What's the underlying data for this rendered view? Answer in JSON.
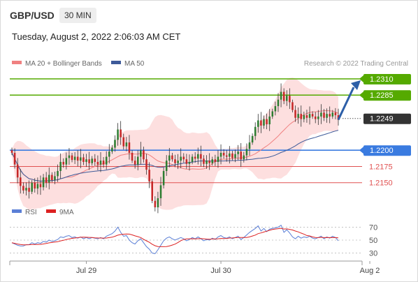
{
  "header": {
    "pair": "GBP/USD",
    "timeframe": "30 MIN",
    "date": "Tuesday, August 2, 2022 2:06:03 AM CET",
    "copyright": "Research © 2022 Trading Central"
  },
  "legend": {
    "main": [
      {
        "label": "MA 20 + Bollinger Bands",
        "color": "#f08080"
      },
      {
        "label": "MA 50",
        "color": "#3d5a99"
      }
    ],
    "rsi": [
      {
        "label": "RSI",
        "color": "#5b7fd6"
      },
      {
        "label": "9MA",
        "color": "#dd2222"
      }
    ]
  },
  "colors": {
    "up": "#2e7d32",
    "down": "#c62828",
    "resistance": "#55aa00",
    "support": "#3a7be0",
    "pivot": "#e05050",
    "current": "#333333",
    "band": "#fdd9d9"
  },
  "chart_data": {
    "type": "candlestick",
    "y_range": [
      1.2126,
      1.2324
    ],
    "current_price": 1.2249,
    "levels": [
      {
        "label": "1.2310",
        "value": 1.231,
        "kind": "resistance"
      },
      {
        "label": "1.2285",
        "value": 1.2285,
        "kind": "resistance"
      },
      {
        "label": "1.2249",
        "value": 1.2249,
        "kind": "current"
      },
      {
        "label": "1.2200",
        "value": 1.22,
        "kind": "support"
      },
      {
        "label": "1.2175",
        "value": 1.2175,
        "kind": "pivot"
      },
      {
        "label": "1.2150",
        "value": 1.215,
        "kind": "pivot"
      }
    ],
    "close": [
      1.2196,
      1.2178,
      1.2158,
      1.2145,
      1.2138,
      1.2142,
      1.2136,
      1.215,
      1.2141,
      1.2148,
      1.2143,
      1.2158,
      1.215,
      1.2162,
      1.2154,
      1.216,
      1.2168,
      1.2182,
      1.2178,
      1.2188,
      1.2192,
      1.2185,
      1.219,
      1.2184,
      1.2189,
      1.2182,
      1.2186,
      1.218,
      1.2187,
      1.2182,
      1.2178,
      1.2184,
      1.2178,
      1.219,
      1.2198,
      1.2204,
      1.2216,
      1.2232,
      1.222,
      1.2206,
      1.2212,
      1.2196,
      1.2184,
      1.2178,
      1.219,
      1.22,
      1.2186,
      1.217,
      1.2152,
      1.2122,
      1.2112,
      1.2126,
      1.2146,
      1.2168,
      1.2184,
      1.2192,
      1.2186,
      1.218,
      1.2184,
      1.219,
      1.2186,
      1.2179,
      1.2182,
      1.219,
      1.2187,
      1.2194,
      1.2187,
      1.2179,
      1.2184,
      1.218,
      1.2186,
      1.2182,
      1.219,
      1.2196,
      1.2192,
      1.219,
      1.2195,
      1.2188,
      1.2194,
      1.2198,
      1.2186,
      1.2192,
      1.2202,
      1.2212,
      1.2222,
      1.2236,
      1.2246,
      1.2238,
      1.2248,
      1.224,
      1.2252,
      1.226,
      1.2268,
      1.2278,
      1.229,
      1.2276,
      1.2284,
      1.2274,
      1.2262,
      1.225,
      1.2256,
      1.2248,
      1.2254,
      1.225,
      1.2256,
      1.2252,
      1.2248,
      1.2252,
      1.2258,
      1.225,
      1.2256,
      1.2252,
      1.2258,
      1.2254,
      1.2247
    ],
    "x_ticks": [
      {
        "label": "Jul 29",
        "index": 26
      },
      {
        "label": "Jul 30",
        "index": 73
      },
      {
        "label": "Aug 2",
        "index": 125
      }
    ],
    "rsi": {
      "y_range": [
        22,
        78
      ],
      "ticks": [
        70,
        50,
        30
      ],
      "values": [
        46,
        44,
        42,
        41,
        41,
        43,
        43,
        46,
        44,
        46,
        45,
        48,
        47,
        50,
        48,
        49,
        51,
        55,
        54,
        56,
        57,
        54,
        55,
        53,
        55,
        52,
        54,
        52,
        54,
        53,
        52,
        54,
        52,
        56,
        58,
        60,
        64,
        70,
        62,
        56,
        57,
        50,
        46,
        44,
        49,
        52,
        46,
        40,
        36,
        30,
        29,
        35,
        42,
        49,
        53,
        55,
        52,
        50,
        52,
        54,
        52,
        49,
        51,
        54,
        52,
        55,
        52,
        49,
        51,
        50,
        53,
        51,
        55,
        57,
        54,
        53,
        55,
        52,
        54,
        56,
        51,
        54,
        58,
        62,
        65,
        68,
        72,
        64,
        68,
        63,
        67,
        68,
        69,
        70,
        73,
        62,
        66,
        61,
        55,
        52,
        56,
        53,
        55,
        54,
        56,
        53,
        52,
        54,
        56,
        52,
        55,
        53,
        56,
        54,
        49
      ]
    }
  }
}
